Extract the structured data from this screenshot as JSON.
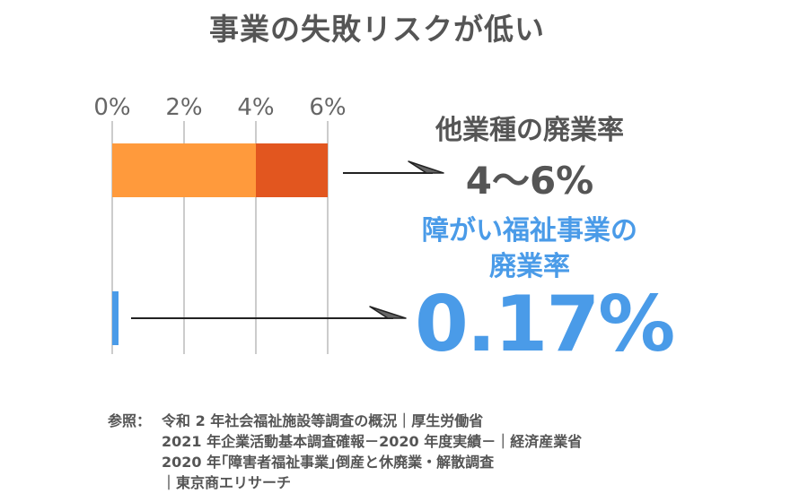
{
  "title": "事業の失敗リスクが低い",
  "chart_data": {
    "type": "bar",
    "orientation": "horizontal",
    "x_ticks": [
      "0%",
      "2%",
      "4%",
      "6%"
    ],
    "xlim": [
      0,
      6
    ],
    "grid": true,
    "bars": [
      {
        "category": "他業種の廃業率",
        "range_low": 4,
        "range_high": 6,
        "value_label": "4〜6%",
        "color_base": "#ff9a3c",
        "color_range": "#e2561f"
      },
      {
        "category": "障がい福祉事業の廃業率",
        "value": 0.17,
        "value_label": "0.17%",
        "color": "#4a9be8"
      }
    ]
  },
  "labels": {
    "other_title": "他業種の廃業率",
    "other_value": "4〜6%",
    "welfare_title_line1": "障がい福祉事業の",
    "welfare_title_line2": "廃業率",
    "welfare_value": "0.17%"
  },
  "sources": {
    "prefix": "参照：",
    "lines": [
      "令和 2 年社会福祉施設等調査の概況｜厚生労働省",
      "2021 年企業活動基本調査確報－2020 年度実績－｜経済産業省",
      "2020 年｢障害者福祉事業｣倒産と休廃業・解散調査",
      "｜東京商エリサーチ"
    ]
  },
  "colors": {
    "grid": "#cccccc",
    "arrow": "#222222",
    "text_gray": "#555555",
    "accent_blue": "#4a9be8"
  }
}
